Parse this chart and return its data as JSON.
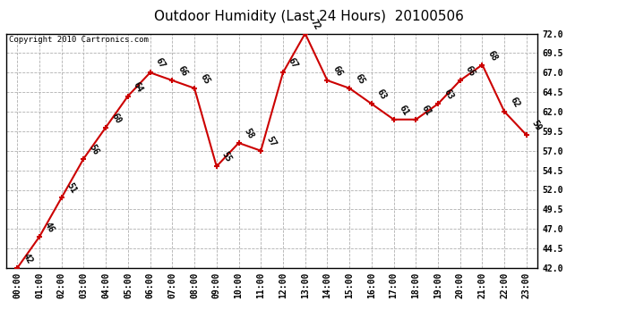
{
  "title": "Outdoor Humidity (Last 24 Hours)  20100506",
  "copyright": "Copyright 2010 Cartronics.com",
  "times": [
    "00:00",
    "01:00",
    "02:00",
    "03:00",
    "04:00",
    "05:00",
    "06:00",
    "07:00",
    "08:00",
    "09:00",
    "10:00",
    "11:00",
    "12:00",
    "13:00",
    "14:00",
    "15:00",
    "16:00",
    "17:00",
    "18:00",
    "19:00",
    "20:00",
    "21:00",
    "22:00",
    "23:00"
  ],
  "values": [
    42,
    46,
    51,
    56,
    60,
    64,
    67,
    66,
    65,
    55,
    58,
    57,
    67,
    72,
    66,
    65,
    63,
    61,
    61,
    63,
    66,
    68,
    62,
    59
  ],
  "ylim": [
    42.0,
    72.0
  ],
  "yticks": [
    42.0,
    44.5,
    47.0,
    49.5,
    52.0,
    54.5,
    57.0,
    59.5,
    62.0,
    64.5,
    67.0,
    69.5,
    72.0
  ],
  "line_color": "#cc0000",
  "marker_color": "#cc0000",
  "bg_color": "#ffffff",
  "plot_bg_color": "#ffffff",
  "grid_color": "#b0b0b0",
  "title_fontsize": 11,
  "copyright_fontsize": 6.5,
  "label_fontsize": 7,
  "tick_fontsize": 7
}
